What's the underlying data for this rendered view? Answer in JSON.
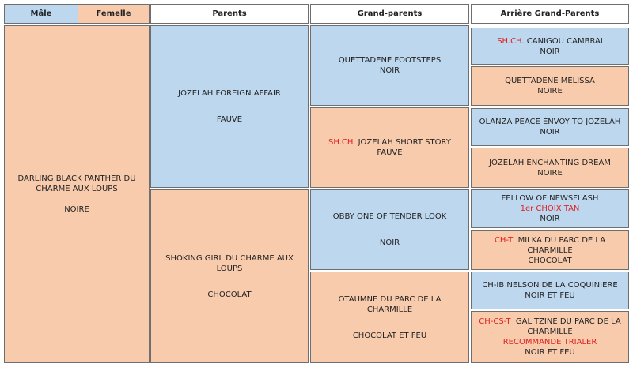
{
  "headers": {
    "male": "Mâle",
    "female": "Femelle",
    "parents": "Parents",
    "grandparents": "Grand-parents",
    "great_grandparents": "Arrière Grand-Parents"
  },
  "subject": {
    "name": "DARLING BLACK PANTHER DU CHARME AUX LOUPS",
    "color": "NOIRE"
  },
  "parents": [
    {
      "name": "JOZELAH FOREIGN AFFAIR",
      "color": "FAUVE"
    },
    {
      "name": "SHOKING GIRL DU CHARME AUX LOUPS",
      "color": "CHOCOLAT"
    }
  ],
  "grandparents": [
    {
      "title": "",
      "name": "QUETTADENE FOOTSTEPS",
      "color": "NOIR"
    },
    {
      "title": "SH.CH.",
      "name": "JOZELAH SHORT STORY",
      "color": "FAUVE"
    },
    {
      "title": "",
      "name": "OBBY ONE OF TENDER LOOK",
      "color": "NOIR"
    },
    {
      "title": "",
      "name": "OTAUMNE DU PARC DE LA CHARMILLE",
      "color": "CHOCOLAT ET FEU"
    }
  ],
  "great_grandparents": [
    {
      "title": "SH.CH.",
      "name": "CANIGOU CAMBRAI",
      "note": "",
      "color": "NOIR"
    },
    {
      "title": "",
      "name": "QUETTADENE MELISSA",
      "note": "",
      "color": "NOIRE"
    },
    {
      "title": "",
      "name": "OLANZA PEACE ENVOY TO JOZELAH",
      "note": "",
      "color": "NOIR"
    },
    {
      "title": "",
      "name": "JOZELAH ENCHANTING DREAM",
      "note": "",
      "color": "NOIRE"
    },
    {
      "title": "",
      "name": "FELLOW OF NEWSFLASH",
      "note": "1er CHOIX TAN",
      "color": "NOIR"
    },
    {
      "title": "CH-T",
      "name": "MILKA DU PARC DE LA CHARMILLE",
      "note": "",
      "color": "CHOCOLAT"
    },
    {
      "title": "",
      "name": "CH-IB NELSON DE LA COQUINIERE",
      "note": "",
      "color": "NOIR ET FEU"
    },
    {
      "title": "CH-CS-T",
      "name": "GALITZINE DU PARC DE LA CHARMILLE",
      "note": "RECOMMANDE TRIALER",
      "color": "NOIR ET FEU"
    }
  ],
  "colors": {
    "male_fill": "#bdd7ee",
    "female_fill": "#f8cbad",
    "title_red": "#e02020",
    "border": "#6e6e6e"
  }
}
